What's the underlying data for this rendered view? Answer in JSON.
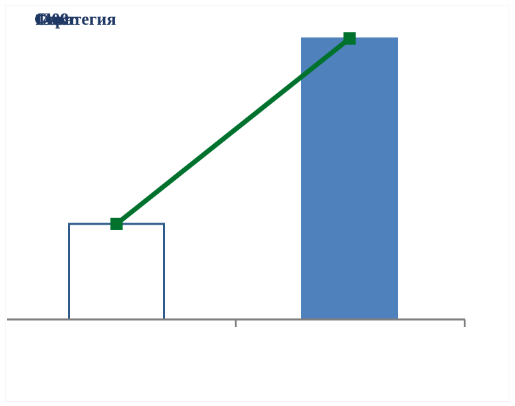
{
  "chart_data": {
    "type": "bar",
    "categories": [
      "",
      ""
    ],
    "series": [
      {
        "kind": "bar",
        "values": [
          34,
          100
        ],
        "fills": [
          "#ffffff",
          "#4f81bd"
        ],
        "strokes": [
          "#2e5a8c",
          "#4f81bd"
        ]
      },
      {
        "kind": "line",
        "values": [
          34,
          100
        ],
        "color": "#00722e",
        "marker": "square"
      }
    ],
    "title_fragments": [
      "1300",
      "1408",
      "Стратегия",
      "Факт"
    ],
    "xlabel": "",
    "ylabel": "",
    "ylim": [
      0,
      100
    ],
    "grid": false,
    "legend": "none",
    "axis_color": "#7f7f7f"
  }
}
